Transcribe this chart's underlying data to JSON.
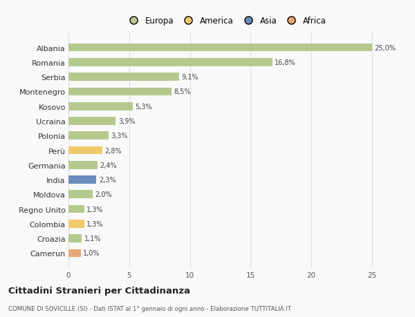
{
  "countries": [
    "Albania",
    "Romania",
    "Serbia",
    "Montenegro",
    "Kosovo",
    "Ucraina",
    "Polonia",
    "Perù",
    "Germania",
    "India",
    "Moldova",
    "Regno Unito",
    "Colombia",
    "Croazia",
    "Camerun"
  ],
  "values": [
    25.0,
    16.8,
    9.1,
    8.5,
    5.3,
    3.9,
    3.3,
    2.8,
    2.4,
    2.3,
    2.0,
    1.3,
    1.3,
    1.1,
    1.0
  ],
  "labels": [
    "25,0%",
    "16,8%",
    "9,1%",
    "8,5%",
    "5,3%",
    "3,9%",
    "3,3%",
    "2,8%",
    "2,4%",
    "2,3%",
    "2,0%",
    "1,3%",
    "1,3%",
    "1,1%",
    "1,0%"
  ],
  "continents": [
    "Europa",
    "Europa",
    "Europa",
    "Europa",
    "Europa",
    "Europa",
    "Europa",
    "America",
    "Europa",
    "Asia",
    "Europa",
    "Europa",
    "America",
    "Europa",
    "Africa"
  ],
  "colors": {
    "Europa": "#b5c98e",
    "America": "#f0c96a",
    "Asia": "#6b8cba",
    "Africa": "#e8a878"
  },
  "title": "Cittadini Stranieri per Cittadinanza",
  "subtitle": "COMUNE DI SOVICILLE (SI) - Dati ISTAT al 1° gennaio di ogni anno - Elaborazione TUTTITALIA.IT",
  "xlim": [
    0,
    27
  ],
  "xticks": [
    0,
    5,
    10,
    15,
    20,
    25
  ],
  "bg_color": "#f9f9f9",
  "grid_color": "#dddddd",
  "bar_height": 0.55,
  "legend_order": [
    "Europa",
    "America",
    "Asia",
    "Africa"
  ]
}
